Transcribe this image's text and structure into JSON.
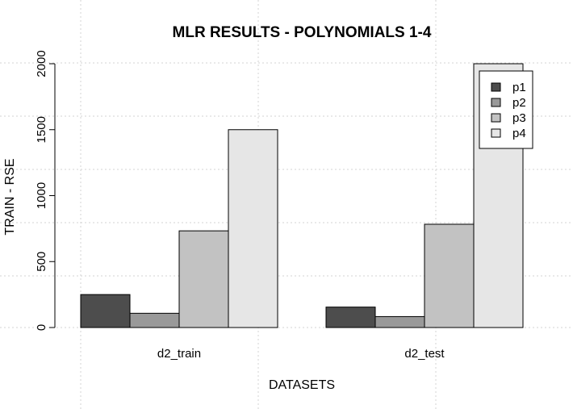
{
  "chart_data": {
    "type": "bar",
    "title": "MLR RESULTS - POLYNOMIALS 1-4",
    "xlabel": "DATASETS",
    "ylabel": "TRAIN - RSE",
    "categories": [
      "d2_train",
      "d2_test"
    ],
    "series": [
      {
        "name": "p1",
        "color": "#4d4d4d",
        "values": [
          250,
          155
        ]
      },
      {
        "name": "p2",
        "color": "#999999",
        "values": [
          108,
          83
        ]
      },
      {
        "name": "p3",
        "color": "#c2c2c2",
        "values": [
          733,
          783
        ]
      },
      {
        "name": "p4",
        "color": "#e6e6e6",
        "values": [
          1500,
          2000
        ]
      }
    ],
    "ylim": [
      0,
      2000
    ],
    "yticks": [
      "0",
      "500",
      "1000",
      "1500",
      "2000"
    ],
    "grid": true,
    "legend_position": "top-right"
  }
}
